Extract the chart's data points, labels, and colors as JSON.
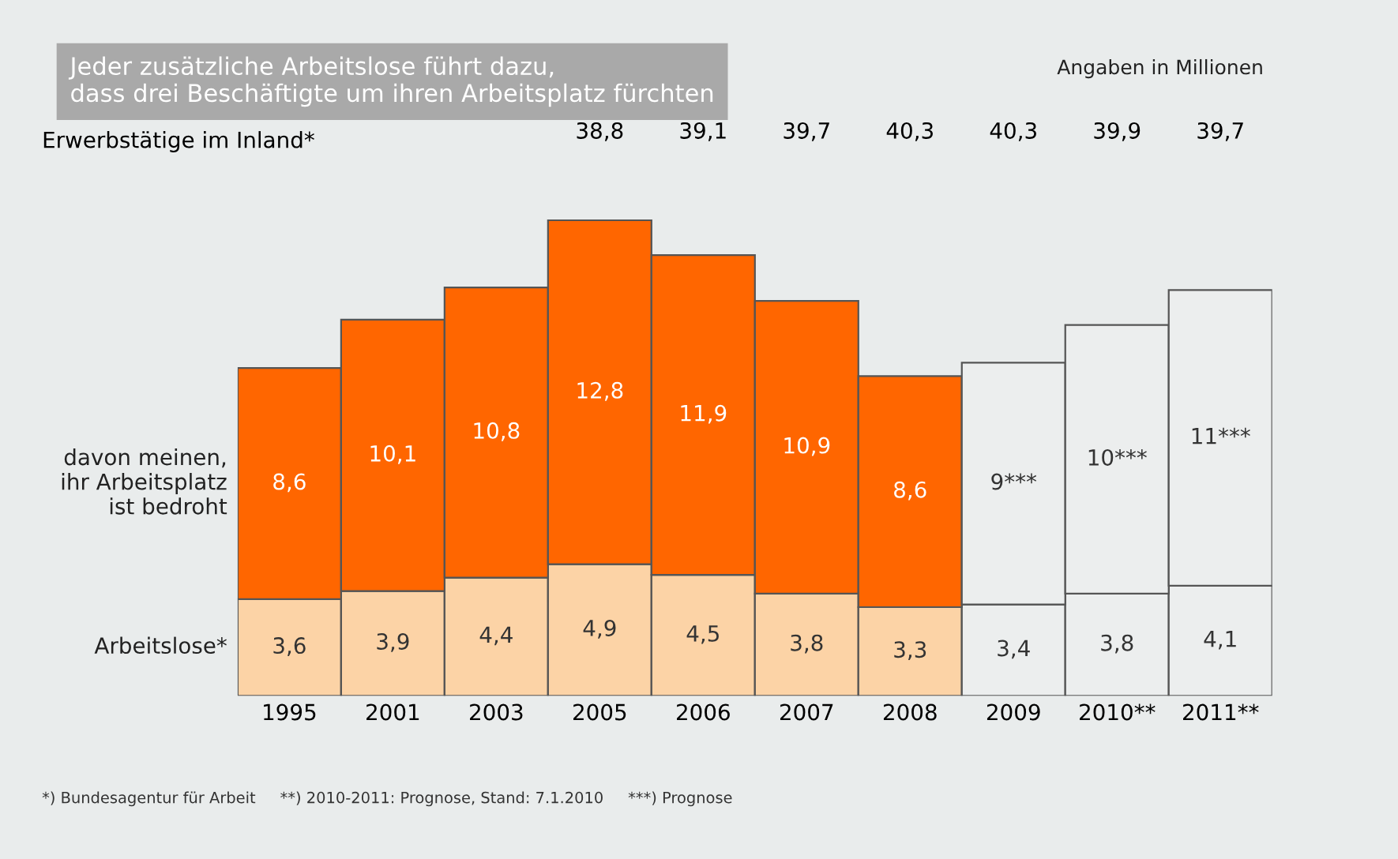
{
  "chart_data": {
    "type": "bar",
    "stacked": true,
    "title": "Jeder zusätzliche Arbeitslose führt dazu,\ndass drei Beschäftigte um ihren Arbeitsplatz fürchten",
    "subtitle": "Angaben in Millionen",
    "categories": [
      "1995",
      "2001",
      "2003",
      "2005",
      "2006",
      "2007",
      "2008",
      "2009",
      "2010**",
      "2011**"
    ],
    "series": [
      {
        "name": "Arbeitslose*",
        "colors": [
          "#fcd3a6",
          "#fcd3a6",
          "#fcd3a6",
          "#fcd3a6",
          "#fcd3a6",
          "#fcd3a6",
          "#fcd3a6",
          "#eceeee",
          "#eceeee",
          "#eceeee"
        ],
        "values": [
          3.6,
          3.9,
          4.4,
          4.9,
          4.5,
          3.8,
          3.3,
          3.4,
          3.8,
          4.1
        ],
        "value_labels": [
          "3,6",
          "3,9",
          "4,4",
          "4,9",
          "4,5",
          "3,8",
          "3,3",
          "3,4",
          "3,8",
          "4,1"
        ]
      },
      {
        "name": "davon meinen,\nihr Arbeitsplatz\nist bedroht",
        "colors": [
          "#ff6600",
          "#ff6600",
          "#ff6600",
          "#ff6600",
          "#ff6600",
          "#ff6600",
          "#ff6600",
          "#eceeee",
          "#eceeee",
          "#eceeee"
        ],
        "values": [
          8.6,
          10.1,
          10.8,
          12.8,
          11.9,
          10.9,
          8.6,
          9,
          10,
          11
        ],
        "value_labels": [
          "8,6",
          "10,1",
          "10,8",
          "12,8",
          "11,9",
          "10,9",
          "8,6",
          "9***",
          "10***",
          "11***"
        ]
      }
    ],
    "annotations": [
      "Erwerbstätige im Inland*",
      "38,8",
      "39,1",
      "39,7",
      "40,3",
      "40,3",
      "39,9",
      "39,7",
      "*) Bundesagentur für Arbeit     **) 2010-2011: Prognose, Stand: 7.1.2010     ***) Prognose"
    ],
    "legend": false,
    "grid": false
  }
}
